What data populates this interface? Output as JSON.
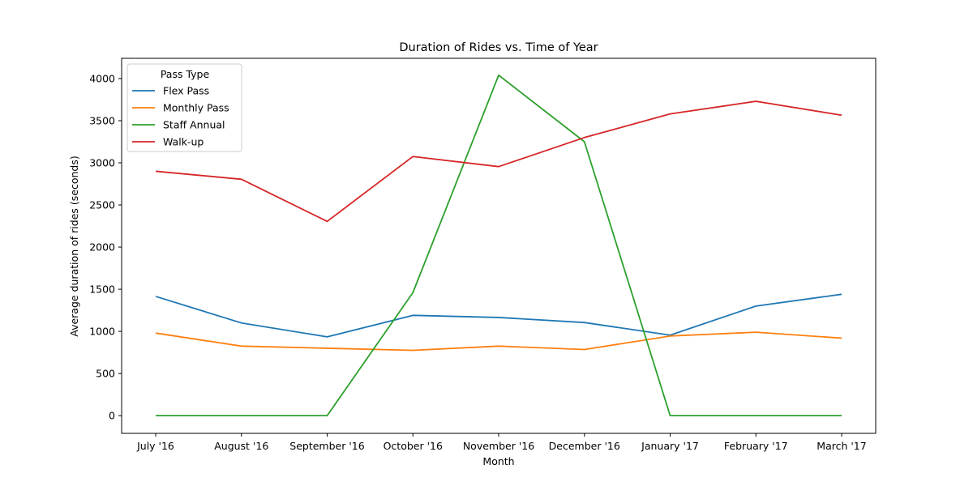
{
  "chart_data": {
    "type": "line",
    "title": "Duration of Rides vs. Time of Year",
    "xlabel": "Month",
    "ylabel": "Average duration of rides (seconds)",
    "categories": [
      "July '16",
      "August '16",
      "September '16",
      "October '16",
      "November '16",
      "December '16",
      "January '17",
      "February '17",
      "March '17"
    ],
    "ylim": [
      -210,
      4240
    ],
    "yticks": [
      0,
      500,
      1000,
      1500,
      2000,
      2500,
      3000,
      3500,
      4000
    ],
    "grid": false,
    "legend": {
      "title": "Pass Type",
      "position": "top-left"
    },
    "series": [
      {
        "name": "Flex Pass",
        "color": "#1f77b4",
        "values": [
          1415,
          1100,
          935,
          1190,
          1165,
          1105,
          955,
          1300,
          1440
        ]
      },
      {
        "name": "Monthly Pass",
        "color": "#ff7f0e",
        "values": [
          980,
          825,
          800,
          775,
          825,
          785,
          945,
          990,
          920
        ]
      },
      {
        "name": "Staff Annual",
        "color": "#2ca02c",
        "values": [
          0,
          0,
          0,
          1460,
          4040,
          3250,
          0,
          0,
          0
        ]
      },
      {
        "name": "Walk-up",
        "color": "#d62728",
        "values": [
          2900,
          2805,
          2305,
          3075,
          2955,
          3300,
          3580,
          3730,
          3565
        ]
      }
    ]
  }
}
